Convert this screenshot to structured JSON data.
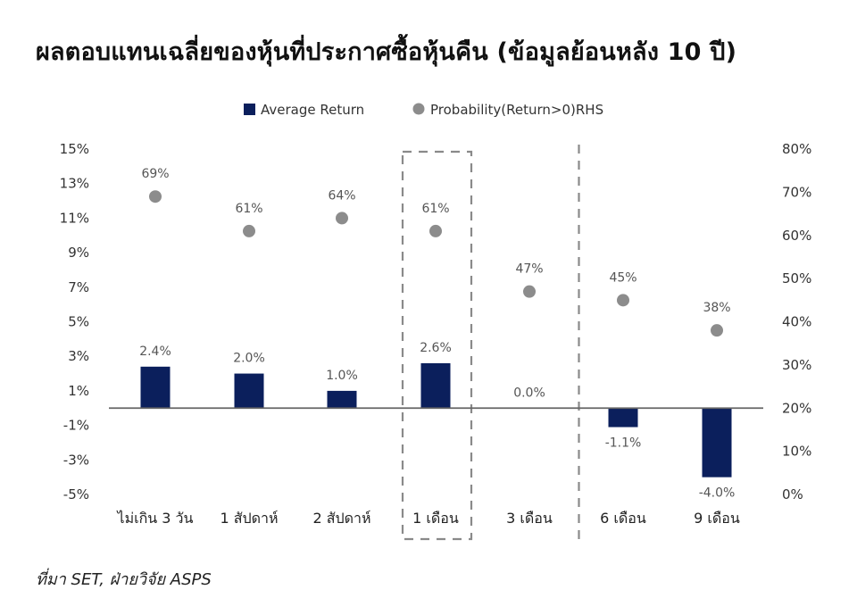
{
  "title": "ผลตอบแทนเฉลี่ยของหุ้นที่ประกาศซื้อหุ้นคืน (ข้อมูลย้อนหลัง 10 ปี)",
  "source": "ที่มา SET, ฝ่ายวิจัย ASPS",
  "chart_data": {
    "type": "bar",
    "categories": [
      "ไม่เกิน 3 วัน",
      "1 สัปดาห์",
      "2 สัปดาห์",
      "1 เดือน",
      "3 เดือน",
      "6 เดือน",
      "9 เดือน"
    ],
    "series": [
      {
        "name": "Average Return",
        "type": "bar",
        "axis": "left",
        "color": "#0b1f5c",
        "values": [
          2.4,
          2.0,
          1.0,
          2.6,
          0.0,
          -1.1,
          -4.0
        ],
        "labels": [
          "2.4%",
          "2.0%",
          "1.0%",
          "2.6%",
          "0.0%",
          "-1.1%",
          "-4.0%"
        ]
      },
      {
        "name": "Probability(Return>0)RHS",
        "type": "scatter",
        "axis": "right",
        "color": "#8c8c8c",
        "values": [
          69,
          61,
          64,
          61,
          47,
          45,
          38
        ],
        "labels": [
          "69%",
          "61%",
          "64%",
          "61%",
          "47%",
          "45%",
          "38%"
        ]
      }
    ],
    "left_axis": {
      "min": -5,
      "max": 15,
      "ticks": [
        15,
        13,
        11,
        9,
        7,
        5,
        3,
        1,
        -1,
        -3,
        -5
      ],
      "tick_labels": [
        "15%",
        "13%",
        "11%",
        "9%",
        "7%",
        "5%",
        "3%",
        "1%",
        "-1%",
        "-3%",
        "-5%"
      ]
    },
    "right_axis": {
      "min": 0,
      "max": 80,
      "ticks": [
        80,
        70,
        60,
        50,
        40,
        30,
        20,
        10,
        0
      ],
      "tick_labels": [
        "80%",
        "70%",
        "60%",
        "50%",
        "40%",
        "30%",
        "20%",
        "10%",
        "0%"
      ]
    },
    "highlight_box_category": "1 เดือน",
    "divider_before_category": "6 เดือน",
    "legend_position": "top-center",
    "grid": false
  }
}
